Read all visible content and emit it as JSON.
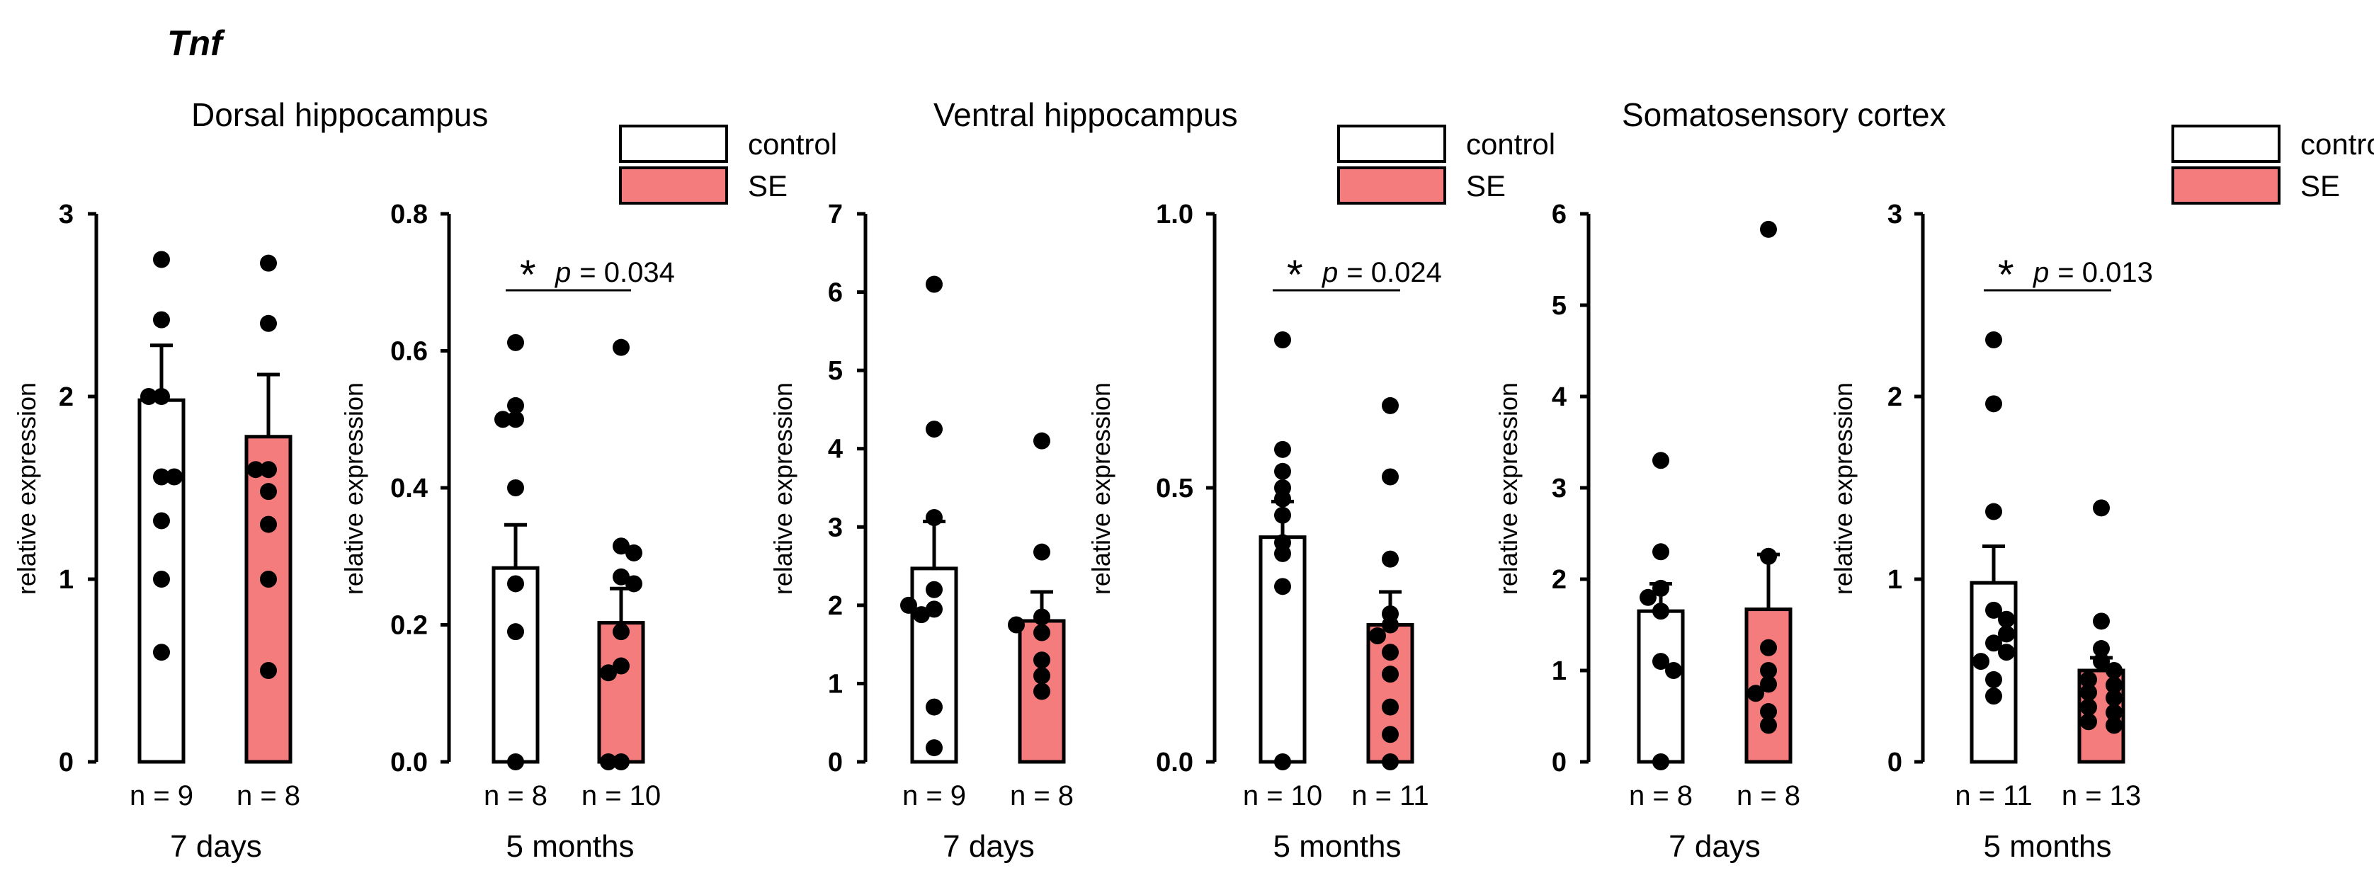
{
  "gene": "Tnf",
  "colors": {
    "control": "#ffffff",
    "SE": "#f47c7c",
    "ink": "#000000"
  },
  "legend": {
    "control": "control",
    "SE": "SE"
  },
  "ylabel": "relative expression",
  "chart_data": [
    {
      "type": "bar",
      "panel": "Dorsal hippocampus",
      "timepoint": "7 days",
      "ylim": [
        0,
        3
      ],
      "yticks": [
        "0",
        "1",
        "2",
        "3"
      ],
      "groups": [
        {
          "name": "control",
          "n": "n = 9",
          "mean": 1.98,
          "sem": 0.3,
          "points": [
            2.75,
            2.42,
            2.0,
            1.56,
            1.32,
            1.0,
            0.6,
            2.0,
            1.56
          ]
        },
        {
          "name": "SE",
          "n": "n = 8",
          "mean": 1.78,
          "sem": 0.34,
          "points": [
            2.73,
            2.4,
            1.6,
            1.48,
            1.3,
            1.0,
            0.5,
            1.6
          ]
        }
      ]
    },
    {
      "type": "bar",
      "panel": "Dorsal hippocampus",
      "timepoint": "5 months",
      "ylim": [
        0,
        0.8
      ],
      "yticks": [
        "0.0",
        "0.2",
        "0.4",
        "0.6",
        "0.8"
      ],
      "significance": {
        "star": "*",
        "p_label": "p",
        "p_value": "= 0.034"
      },
      "groups": [
        {
          "name": "control",
          "n": "n = 8",
          "mean": 0.283,
          "sem": 0.063,
          "points": [
            0.612,
            0.52,
            0.5,
            0.4,
            0.26,
            0.19,
            0.0,
            0.5
          ]
        },
        {
          "name": "SE",
          "n": "n = 10",
          "mean": 0.203,
          "sem": 0.05,
          "points": [
            0.605,
            0.315,
            0.305,
            0.27,
            0.26,
            0.19,
            0.14,
            0.13,
            0.0,
            0.0
          ]
        }
      ]
    },
    {
      "type": "bar",
      "panel": "Ventral hippocampus",
      "timepoint": "7 days",
      "ylim": [
        0,
        7
      ],
      "yticks": [
        "0",
        "1",
        "2",
        "3",
        "4",
        "5",
        "6",
        "7"
      ],
      "groups": [
        {
          "name": "control",
          "n": "n = 9",
          "mean": 2.47,
          "sem": 0.6,
          "points": [
            6.1,
            4.25,
            3.12,
            2.2,
            1.95,
            1.88,
            0.7,
            0.18,
            2.0
          ]
        },
        {
          "name": "SE",
          "n": "n = 8",
          "mean": 1.8,
          "sem": 0.37,
          "points": [
            4.1,
            2.68,
            1.85,
            1.65,
            1.3,
            1.1,
            0.9,
            1.75
          ]
        }
      ]
    },
    {
      "type": "bar",
      "panel": "Ventral hippocampus",
      "timepoint": "5 months",
      "ylim": [
        0,
        1.0
      ],
      "yticks": [
        "0.0",
        "0.5",
        "1.0"
      ],
      "significance": {
        "star": "*",
        "p_label": "p",
        "p_value": "= 0.024"
      },
      "groups": [
        {
          "name": "control",
          "n": "n = 10",
          "mean": 0.41,
          "sem": 0.065,
          "points": [
            0.77,
            0.57,
            0.53,
            0.5,
            0.45,
            0.4,
            0.38,
            0.32,
            0.0,
            0.48
          ]
        },
        {
          "name": "SE",
          "n": "n = 11",
          "mean": 0.25,
          "sem": 0.06,
          "points": [
            0.65,
            0.52,
            0.37,
            0.27,
            0.25,
            0.23,
            0.2,
            0.16,
            0.1,
            0.05,
            0.0
          ]
        }
      ]
    },
    {
      "type": "bar",
      "panel": "Somatosensory cortex",
      "timepoint": "7 days",
      "ylim": [
        0,
        6
      ],
      "yticks": [
        "0",
        "1",
        "2",
        "3",
        "4",
        "5",
        "6"
      ],
      "groups": [
        {
          "name": "control",
          "n": "n = 8",
          "mean": 1.65,
          "sem": 0.3,
          "points": [
            3.3,
            2.3,
            1.9,
            1.8,
            1.65,
            1.1,
            1.0,
            0.0
          ]
        },
        {
          "name": "SE",
          "n": "n = 8",
          "mean": 1.67,
          "sem": 0.6,
          "points": [
            5.83,
            2.25,
            1.25,
            1.0,
            0.85,
            0.75,
            0.55,
            0.4
          ]
        }
      ]
    },
    {
      "type": "bar",
      "panel": "Somatosensory cortex",
      "timepoint": "5 months",
      "ylim": [
        0,
        3
      ],
      "yticks": [
        "0",
        "1",
        "2",
        "3"
      ],
      "significance": {
        "star": "*",
        "p_label": "p",
        "p_value": "= 0.013"
      },
      "groups": [
        {
          "name": "control",
          "n": "n = 11",
          "mean": 0.98,
          "sem": 0.2,
          "points": [
            2.31,
            1.96,
            1.37,
            0.83,
            0.78,
            0.65,
            0.6,
            0.55,
            0.45,
            0.36,
            0.7
          ]
        },
        {
          "name": "SE",
          "n": "n = 13",
          "mean": 0.5,
          "sem": 0.07,
          "points": [
            1.39,
            0.77,
            0.62,
            0.55,
            0.5,
            0.45,
            0.42,
            0.38,
            0.35,
            0.3,
            0.27,
            0.22,
            0.2
          ]
        }
      ]
    }
  ]
}
